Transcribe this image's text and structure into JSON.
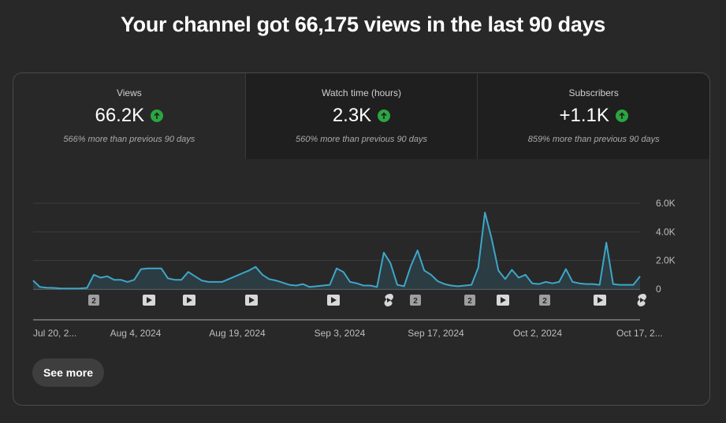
{
  "headline": "Your channel got 66,175 views in the last 90 days",
  "tabs": [
    {
      "title": "Views",
      "value": "66.2K",
      "change": "566% more than previous 90 days",
      "trend_icon": "arrow-up-icon"
    },
    {
      "title": "Watch time (hours)",
      "value": "2.3K",
      "change": "560% more than previous 90 days",
      "trend_icon": "arrow-up-icon"
    },
    {
      "title": "Subscribers",
      "value": "+1.1K",
      "change": "859% more than previous 90 days",
      "trend_icon": "arrow-up-icon"
    }
  ],
  "colors": {
    "line": "#3ea6c9",
    "area": "#2c3f47",
    "trend_up": "#2ba640",
    "background": "#282828",
    "inactive_tab": "#1f1f1f"
  },
  "chart_data": {
    "type": "area",
    "x_tick_labels": [
      "Jul 20, 2...",
      "Aug 4, 2024",
      "Aug 19, 2024",
      "Sep 3, 2024",
      "Sep 17, 2024",
      "Oct 2, 2024",
      "Oct 17, 2..."
    ],
    "y_tick_labels": [
      "6.0K",
      "4.0K",
      "2.0K",
      "0"
    ],
    "ylim": [
      0,
      6000
    ],
    "grid": true,
    "values": [
      600,
      150,
      100,
      80,
      50,
      40,
      40,
      50,
      80,
      1000,
      800,
      900,
      650,
      650,
      500,
      650,
      1400,
      1450,
      1450,
      1450,
      750,
      650,
      650,
      1200,
      900,
      600,
      500,
      500,
      500,
      700,
      900,
      1100,
      1300,
      1550,
      1000,
      700,
      600,
      450,
      300,
      250,
      350,
      150,
      200,
      250,
      300,
      1450,
      1200,
      500,
      400,
      250,
      250,
      150,
      2550,
      1800,
      300,
      200,
      1600,
      2700,
      1300,
      1000,
      550,
      350,
      250,
      200,
      250,
      300,
      1500,
      5350,
      3500,
      1300,
      700,
      1350,
      800,
      1000,
      400,
      350,
      500,
      400,
      500,
      1400,
      500,
      400,
      350,
      350,
      300,
      3250,
      350,
      300,
      300,
      300,
      900
    ],
    "markers": [
      {
        "type": "badge",
        "label": "2"
      },
      {
        "type": "video-icon"
      },
      {
        "type": "video-icon"
      },
      {
        "type": "video-icon"
      },
      {
        "type": "video-icon"
      },
      {
        "type": "shorts-icon"
      },
      {
        "type": "badge",
        "label": "2"
      },
      {
        "type": "badge",
        "label": "2"
      },
      {
        "type": "video-icon"
      },
      {
        "type": "badge",
        "label": "2"
      },
      {
        "type": "video-icon"
      },
      {
        "type": "shorts-icon"
      }
    ]
  },
  "see_more_label": "See more"
}
